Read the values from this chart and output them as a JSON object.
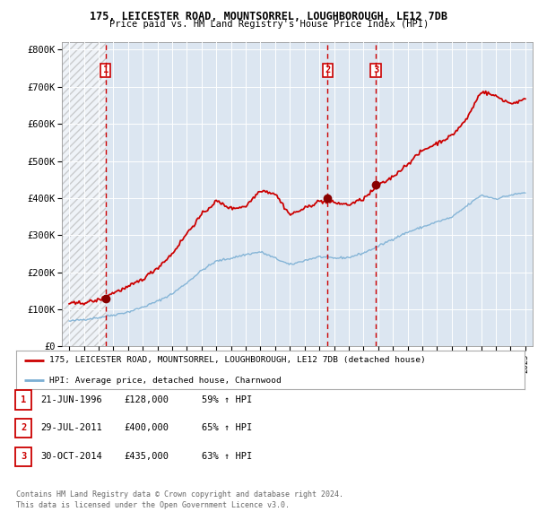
{
  "title1": "175, LEICESTER ROAD, MOUNTSORREL, LOUGHBOROUGH, LE12 7DB",
  "title2": "Price paid vs. HM Land Registry's House Price Index (HPI)",
  "plot_bg": "#dce6f1",
  "red_line_color": "#cc0000",
  "blue_line_color": "#7bafd4",
  "sale_dates": [
    1996.47,
    2011.57,
    2014.83
  ],
  "sale_prices": [
    128000,
    400000,
    435000
  ],
  "sale_labels": [
    "1",
    "2",
    "3"
  ],
  "vline_dates": [
    1996.47,
    2011.57,
    2014.83
  ],
  "legend_line1": "175, LEICESTER ROAD, MOUNTSORREL, LOUGHBOROUGH, LE12 7DB (detached house)",
  "legend_line2": "HPI: Average price, detached house, Charnwood",
  "table_rows": [
    [
      "1",
      "21-JUN-1996",
      "£128,000",
      "59% ↑ HPI"
    ],
    [
      "2",
      "29-JUL-2011",
      "£400,000",
      "65% ↑ HPI"
    ],
    [
      "3",
      "30-OCT-2014",
      "£435,000",
      "63% ↑ HPI"
    ]
  ],
  "footnote1": "Contains HM Land Registry data © Crown copyright and database right 2024.",
  "footnote2": "This data is licensed under the Open Government Licence v3.0.",
  "yticks": [
    0,
    100000,
    200000,
    300000,
    400000,
    500000,
    600000,
    700000,
    800000
  ],
  "ytick_labels": [
    "£0",
    "£100K",
    "£200K",
    "£300K",
    "£400K",
    "£500K",
    "£600K",
    "£700K",
    "£800K"
  ],
  "xlim_start": 1993.5,
  "xlim_end": 2025.5,
  "ylim_max": 820000,
  "hpi_blue_anchors": {
    "1994": 68000,
    "1995": 73000,
    "1996": 78000,
    "1997": 85000,
    "1998": 93000,
    "1999": 106000,
    "2000": 122000,
    "2001": 142000,
    "2002": 172000,
    "2003": 205000,
    "2004": 230000,
    "2005": 238000,
    "2006": 248000,
    "2007": 255000,
    "2008": 238000,
    "2009": 220000,
    "2010": 232000,
    "2011": 242000,
    "2012": 238000,
    "2013": 240000,
    "2014": 252000,
    "2015": 270000,
    "2016": 290000,
    "2017": 308000,
    "2018": 322000,
    "2019": 336000,
    "2020": 348000,
    "2021": 378000,
    "2022": 408000,
    "2023": 398000,
    "2024": 408000,
    "2025": 415000
  },
  "hpi_red_anchors": {
    "1994": 115000,
    "1995": 118000,
    "1996": 125000,
    "1997": 145000,
    "1998": 160000,
    "1999": 182000,
    "2000": 212000,
    "2001": 250000,
    "2002": 305000,
    "2003": 355000,
    "2004": 392000,
    "2005": 372000,
    "2006": 378000,
    "2007": 422000,
    "2008": 412000,
    "2009": 355000,
    "2010": 372000,
    "2011": 392000,
    "2012": 388000,
    "2013": 382000,
    "2014": 398000,
    "2015": 432000,
    "2016": 458000,
    "2017": 492000,
    "2018": 528000,
    "2019": 548000,
    "2020": 568000,
    "2021": 612000,
    "2022": 688000,
    "2023": 675000,
    "2024": 655000,
    "2025": 665000
  }
}
